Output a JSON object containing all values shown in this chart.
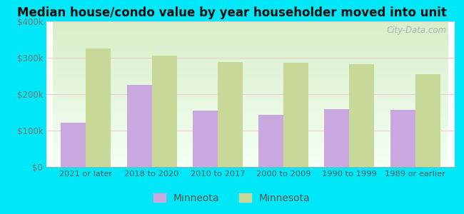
{
  "title": "Median house/condo value by year householder moved into unit",
  "categories": [
    "2021 or later",
    "2018 to 2020",
    "2010 to 2017",
    "2000 to 2009",
    "1990 to 1999",
    "1989 or earlier"
  ],
  "minneota_values": [
    122000,
    225000,
    155000,
    143000,
    158000,
    157000
  ],
  "minnesota_values": [
    325000,
    305000,
    288000,
    287000,
    282000,
    254000
  ],
  "minneota_color": "#c9a8e0",
  "minnesota_color": "#c8d898",
  "background_color": "#00e8f8",
  "ylim": [
    0,
    400000
  ],
  "yticks": [
    0,
    100000,
    200000,
    300000,
    400000
  ],
  "ytick_labels": [
    "$0",
    "$100k",
    "$200k",
    "$300k",
    "$400k"
  ],
  "watermark": "City-Data.com",
  "legend_minneota": "Minneota",
  "legend_minnesota": "Minnesota",
  "bar_width": 0.38
}
